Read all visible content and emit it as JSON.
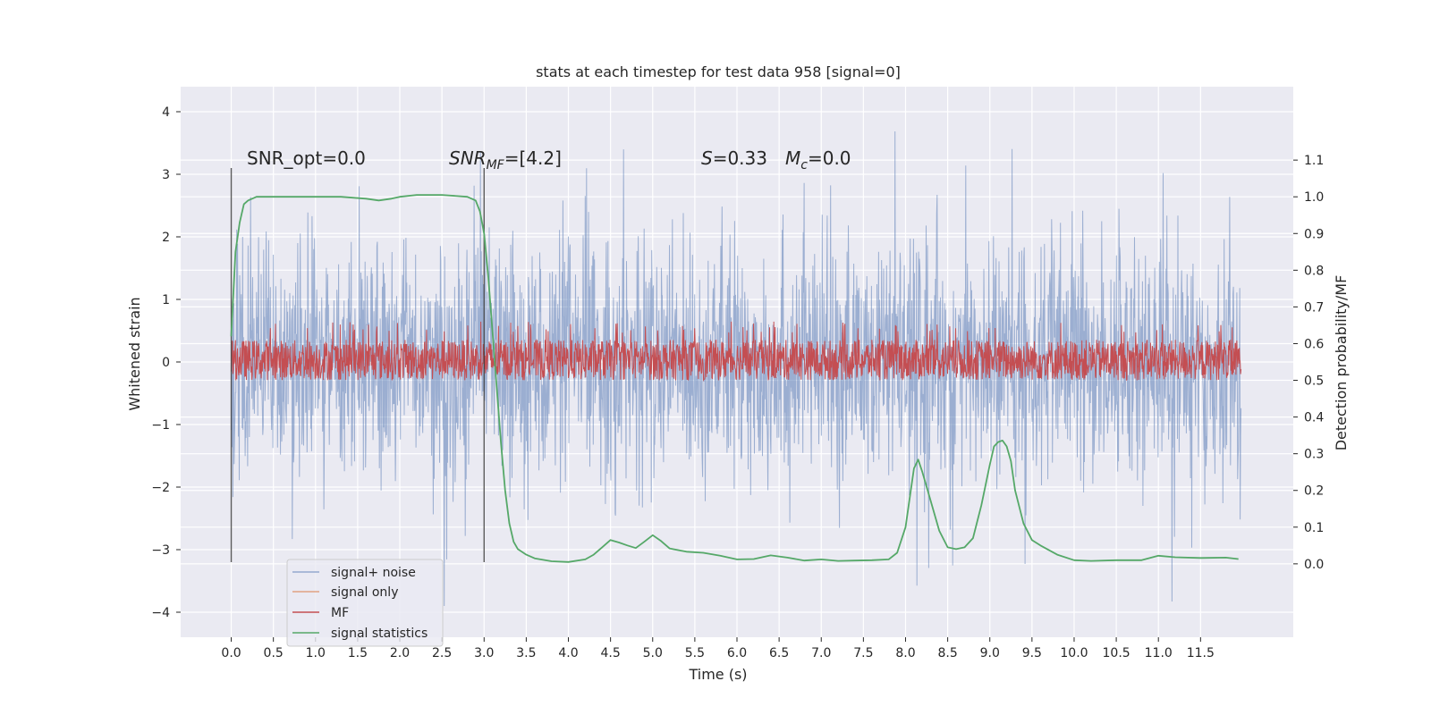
{
  "chart_data": {
    "type": "line",
    "title": "stats at each timestep for test data 958 [signal=0]",
    "xlabel": "Time (s)",
    "ylabel": "Whitened strain",
    "y2label": "Detection probability/MF",
    "xlim": [
      -0.6,
      12.6
    ],
    "ylim": [
      -4.4,
      4.4
    ],
    "y2lim": [
      -0.2,
      1.3
    ],
    "x_ticks": [
      "0.0",
      "0.5",
      "1.0",
      "1.5",
      "2.0",
      "2.5",
      "3.0",
      "3.5",
      "4.0",
      "4.5",
      "5.0",
      "5.5",
      "6.0",
      "6.5",
      "7.0",
      "7.5",
      "8.0",
      "8.5",
      "9.0",
      "9.5",
      "10.0",
      "10.5",
      "11.0",
      "11.5"
    ],
    "y_ticks": [
      "4",
      "3",
      "2",
      "1",
      "0",
      "−1",
      "−2",
      "−3",
      "−4"
    ],
    "y2_ticks": [
      "1.1",
      "1.0",
      "0.9",
      "0.8",
      "0.7",
      "0.6",
      "0.5",
      "0.4",
      "0.3",
      "0.2",
      "0.1",
      "0.0"
    ],
    "grid": true,
    "legend_position": "lower-left",
    "legend": [
      "signal+ noise",
      "signal only",
      "MF",
      "signal statistics"
    ],
    "annotations": {
      "snr_opt": "SNR_opt=0.0",
      "snr_mf_sym": "SNR",
      "snr_mf_sub": "MF",
      "snr_mf_val": "=[4.2]",
      "s_sym": "S",
      "s_val": "=0.33",
      "mc_sym": "M",
      "mc_sub": "c",
      "mc_val": "=0.0"
    },
    "vlines_x": [
      0.0,
      3.0
    ],
    "vline_range": [
      -3.2,
      3.1
    ],
    "colors": {
      "signal_noise": "#4c72b0",
      "signal_only": "#dd8452",
      "mf": "#c44e52",
      "signal_statistics": "#55a868",
      "background": "#eaeaf2",
      "grid": "#ffffff"
    },
    "series": [
      {
        "name": "signal+ noise",
        "description": "dense noise trace, approx |y| within 2.5 with spikes up to ~4",
        "t_range": [
          0.0,
          11.98
        ],
        "amplitude_typical": 2.2,
        "amplitude_peak": 3.9
      },
      {
        "name": "MF",
        "axis": "right",
        "t_range": [
          0.0,
          11.98
        ],
        "band": [
          0.5,
          0.63
        ],
        "peak": 0.66
      },
      {
        "name": "signal statistics",
        "axis": "right",
        "x": [
          0.0,
          0.05,
          0.1,
          0.15,
          0.2,
          0.3,
          0.5,
          0.8,
          1.0,
          1.3,
          1.6,
          1.75,
          1.9,
          2.0,
          2.2,
          2.5,
          2.8,
          2.9,
          2.95,
          3.0,
          3.05,
          3.1,
          3.15,
          3.2,
          3.25,
          3.3,
          3.35,
          3.4,
          3.5,
          3.6,
          3.8,
          4.0,
          4.2,
          4.3,
          4.4,
          4.5,
          4.6,
          4.7,
          4.8,
          4.9,
          5.0,
          5.1,
          5.2,
          5.4,
          5.6,
          5.8,
          6.0,
          6.2,
          6.4,
          6.6,
          6.8,
          7.0,
          7.2,
          7.4,
          7.6,
          7.8,
          7.9,
          8.0,
          8.05,
          8.1,
          8.15,
          8.2,
          8.3,
          8.4,
          8.5,
          8.6,
          8.7,
          8.8,
          8.9,
          9.0,
          9.05,
          9.1,
          9.15,
          9.2,
          9.25,
          9.3,
          9.4,
          9.5,
          9.6,
          9.8,
          10.0,
          10.2,
          10.5,
          10.8,
          11.0,
          11.2,
          11.5,
          11.8,
          11.95
        ],
        "y": [
          0.62,
          0.85,
          0.93,
          0.98,
          0.99,
          1.0,
          1.0,
          1.0,
          1.0,
          1.0,
          0.995,
          0.99,
          0.995,
          1.0,
          1.005,
          1.005,
          1.0,
          0.99,
          0.96,
          0.9,
          0.78,
          0.63,
          0.48,
          0.33,
          0.2,
          0.11,
          0.06,
          0.04,
          0.025,
          0.015,
          0.007,
          0.005,
          0.012,
          0.025,
          0.045,
          0.065,
          0.058,
          0.05,
          0.043,
          0.06,
          0.078,
          0.062,
          0.042,
          0.033,
          0.03,
          0.022,
          0.012,
          0.013,
          0.023,
          0.017,
          0.009,
          0.012,
          0.008,
          0.009,
          0.01,
          0.012,
          0.03,
          0.1,
          0.18,
          0.26,
          0.284,
          0.25,
          0.17,
          0.09,
          0.045,
          0.04,
          0.045,
          0.07,
          0.16,
          0.27,
          0.32,
          0.332,
          0.336,
          0.32,
          0.28,
          0.2,
          0.11,
          0.065,
          0.05,
          0.025,
          0.01,
          0.008,
          0.01,
          0.01,
          0.022,
          0.018,
          0.016,
          0.017,
          0.013
        ]
      }
    ]
  }
}
